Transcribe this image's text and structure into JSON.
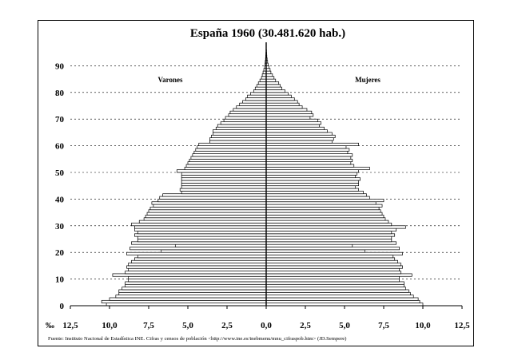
{
  "chart_data": {
    "type": "bar",
    "orientation": "horizontal",
    "subtype": "population-pyramid",
    "title": "España 1960 (30.481.620 hab.)",
    "x_unit_label": "‰",
    "xlim": [
      -12.5,
      12.5
    ],
    "ylim": [
      0,
      95
    ],
    "x_tick_labels": [
      "12,5",
      "10,0",
      "7,5",
      "5,0",
      "2,5",
      "0,0",
      "2,5",
      "5,0",
      "7,5",
      "10,0",
      "12,5"
    ],
    "y_ticks": [
      0,
      10,
      20,
      30,
      40,
      50,
      60,
      70,
      80,
      90
    ],
    "grid": "horizontal-dashed",
    "ages": [
      0,
      1,
      2,
      3,
      4,
      5,
      6,
      7,
      8,
      9,
      10,
      11,
      12,
      13,
      14,
      15,
      16,
      17,
      18,
      19,
      20,
      21,
      22,
      23,
      24,
      25,
      26,
      27,
      28,
      29,
      30,
      31,
      32,
      33,
      34,
      35,
      36,
      37,
      38,
      39,
      40,
      41,
      42,
      43,
      44,
      45,
      46,
      47,
      48,
      49,
      50,
      51,
      52,
      53,
      54,
      55,
      56,
      57,
      58,
      59,
      60,
      61,
      62,
      63,
      64,
      65,
      66,
      67,
      68,
      69,
      70,
      71,
      72,
      73,
      74,
      75,
      76,
      77,
      78,
      79,
      80,
      81,
      82,
      83,
      84,
      85,
      86,
      87,
      88,
      89,
      90,
      91,
      92,
      93,
      94,
      95
    ],
    "series": [
      {
        "name": "Varones",
        "values": [
          10.2,
          10.5,
          10.0,
          9.6,
          9.4,
          9.4,
          9.2,
          9.0,
          9.0,
          8.8,
          8.8,
          9.8,
          9.0,
          8.8,
          8.9,
          8.8,
          8.6,
          8.4,
          8.2,
          8.9,
          6.7,
          8.7,
          5.8,
          8.6,
          8.2,
          8.2,
          8.4,
          8.2,
          8.4,
          8.4,
          8.6,
          8.1,
          7.8,
          7.7,
          7.6,
          7.5,
          7.4,
          7.2,
          7.3,
          6.9,
          6.8,
          6.6,
          5.4,
          5.5,
          5.4,
          5.4,
          5.4,
          5.4,
          5.4,
          5.4,
          5.7,
          5.2,
          5.1,
          5.0,
          4.9,
          4.8,
          4.7,
          4.6,
          4.5,
          4.4,
          4.3,
          3.6,
          3.6,
          3.5,
          3.4,
          3.4,
          3.2,
          3.1,
          2.9,
          2.7,
          2.6,
          2.4,
          2.3,
          2.1,
          1.9,
          1.7,
          1.5,
          1.3,
          1.2,
          1.0,
          0.8,
          0.7,
          0.6,
          0.5,
          0.4,
          0.3,
          0.25,
          0.2,
          0.15,
          0.1,
          0.08,
          0.06,
          0.04,
          0.03,
          0.02,
          0.01
        ]
      },
      {
        "name": "Mujeres",
        "values": [
          10.0,
          9.8,
          9.7,
          9.4,
          9.2,
          9.1,
          8.9,
          8.8,
          8.8,
          8.5,
          8.5,
          9.3,
          8.6,
          8.5,
          8.7,
          8.6,
          8.4,
          8.2,
          8.1,
          8.7,
          6.3,
          8.5,
          5.5,
          8.3,
          8.0,
          8.0,
          8.2,
          8.0,
          8.3,
          8.9,
          8.0,
          7.8,
          7.6,
          7.5,
          7.4,
          7.3,
          7.2,
          7.4,
          7.0,
          7.5,
          6.6,
          6.4,
          6.2,
          5.9,
          5.7,
          5.9,
          5.9,
          6.0,
          5.7,
          5.8,
          5.9,
          6.6,
          5.6,
          5.4,
          5.5,
          5.4,
          5.5,
          5.2,
          5.3,
          5.1,
          5.9,
          4.2,
          4.3,
          4.4,
          4.2,
          3.9,
          3.7,
          3.4,
          3.5,
          3.3,
          2.8,
          3.0,
          2.9,
          2.6,
          2.3,
          2.1,
          2.0,
          1.8,
          1.6,
          1.4,
          1.2,
          1.0,
          0.9,
          0.8,
          0.6,
          0.5,
          0.4,
          0.3,
          0.25,
          0.18,
          0.12,
          0.09,
          0.06,
          0.04,
          0.03,
          0.02
        ]
      }
    ],
    "footnote": "Fuente: Instituto Nacional de Estadística INE. Cifras y censos de población <http://www.ine.es/inebmenu/mnu_cifraspob.htm> (JD.Sempere)"
  }
}
